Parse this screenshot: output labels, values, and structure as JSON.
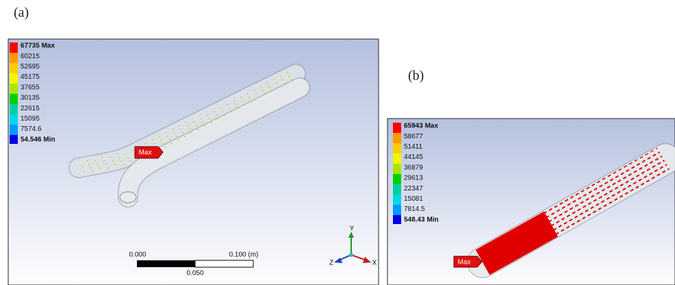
{
  "panels": [
    {
      "label": "(a)",
      "legend": [
        "67735 Max",
        "60215",
        "52695",
        "45175",
        "37655",
        "30135",
        "22615",
        "15095",
        "7574.6",
        "54.546 Min"
      ],
      "max_tag": "Max",
      "scale": {
        "left": "0.000",
        "right": "0.100 (m)",
        "middle": "0.050"
      },
      "axes": {
        "y": "Y",
        "z": "Z",
        "x": "X"
      }
    },
    {
      "label": "(b)",
      "legend": [
        "65943 Max",
        "58677",
        "51411",
        "44145",
        "36879",
        "29613",
        "22347",
        "15081",
        "7814.5",
        "548.43 Min"
      ],
      "max_tag": "Max"
    }
  ]
}
